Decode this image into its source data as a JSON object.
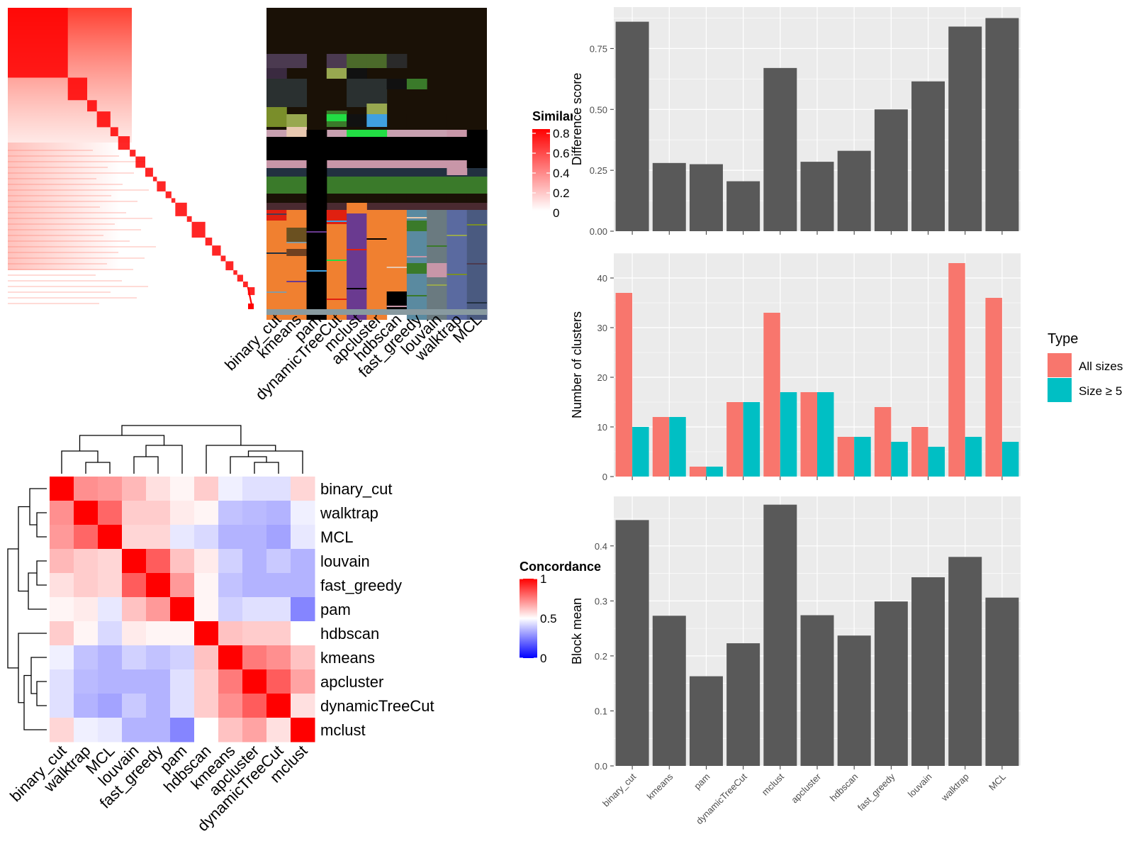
{
  "methods": [
    "binary_cut",
    "kmeans",
    "pam",
    "dynamicTreeCut",
    "mclust",
    "apcluster",
    "hdbscan",
    "fast_greedy",
    "louvain",
    "walktrap",
    "MCL"
  ],
  "heatmap_order": [
    "binary_cut",
    "walktrap",
    "MCL",
    "louvain",
    "fast_greedy",
    "pam",
    "hdbscan",
    "kmeans",
    "apcluster",
    "dynamicTreeCut",
    "mclust"
  ],
  "similarity_legend": {
    "title": "Similarity",
    "ticks": [
      "0.8",
      "0.6",
      "0.4",
      "0.2",
      "0"
    ]
  },
  "concordance_legend": {
    "title": "Concordance",
    "ticks": [
      "1",
      "0.5",
      "0"
    ],
    "colors": {
      "low": "#0000ff",
      "mid": "#ffffff",
      "high": "#ff0000"
    }
  },
  "type_legend": {
    "title": "Type",
    "items": [
      {
        "label": "All sizes",
        "color": "#f8766d"
      },
      {
        "label": "Size ≥ 5",
        "color": "#00bfc4"
      }
    ]
  },
  "colors": {
    "bar": "#595959",
    "panel_bg": "#ebebeb",
    "grid": "#ffffff",
    "similarity_high": "#ff0000"
  },
  "chart_data": [
    {
      "type": "bar",
      "ylabel": "Difference score",
      "categories": [
        "binary_cut",
        "kmeans",
        "pam",
        "dynamicTreeCut",
        "mclust",
        "apcluster",
        "hdbscan",
        "fast_greedy",
        "louvain",
        "walktrap",
        "MCL"
      ],
      "values": [
        0.86,
        0.28,
        0.275,
        0.205,
        0.67,
        0.285,
        0.33,
        0.5,
        0.615,
        0.84,
        0.875
      ],
      "yticks": [
        "0.00",
        "0.25",
        "0.50",
        "0.75"
      ],
      "ylim": [
        0,
        0.92
      ]
    },
    {
      "type": "bar",
      "ylabel": "Number of clusters",
      "categories": [
        "binary_cut",
        "kmeans",
        "pam",
        "dynamicTreeCut",
        "mclust",
        "apcluster",
        "hdbscan",
        "fast_greedy",
        "louvain",
        "walktrap",
        "MCL"
      ],
      "series": [
        {
          "name": "All sizes",
          "values": [
            37,
            12,
            2,
            15,
            33,
            17,
            8,
            14,
            10,
            43,
            36
          ]
        },
        {
          "name": "Size ≥ 5",
          "values": [
            10,
            12,
            2,
            15,
            17,
            17,
            8,
            7,
            6,
            8,
            7
          ]
        }
      ],
      "yticks": [
        "0",
        "10",
        "20",
        "30",
        "40"
      ],
      "ylim": [
        0,
        45
      ]
    },
    {
      "type": "bar",
      "ylabel": "Block mean",
      "categories": [
        "binary_cut",
        "kmeans",
        "pam",
        "dynamicTreeCut",
        "mclust",
        "apcluster",
        "hdbscan",
        "fast_greedy",
        "louvain",
        "walktrap",
        "MCL"
      ],
      "values": [
        0.447,
        0.273,
        0.163,
        0.223,
        0.475,
        0.274,
        0.237,
        0.299,
        0.343,
        0.38,
        0.306
      ],
      "yticks": [
        "0.0",
        "0.1",
        "0.2",
        "0.3",
        "0.4"
      ],
      "ylim": [
        0,
        0.49
      ]
    },
    {
      "type": "heatmap",
      "title": "Concordance",
      "rows": [
        "binary_cut",
        "walktrap",
        "MCL",
        "louvain",
        "fast_greedy",
        "pam",
        "hdbscan",
        "kmeans",
        "apcluster",
        "dynamicTreeCut",
        "mclust"
      ],
      "cols": [
        "binary_cut",
        "walktrap",
        "MCL",
        "louvain",
        "fast_greedy",
        "pam",
        "hdbscan",
        "kmeans",
        "apcluster",
        "dynamicTreeCut",
        "mclust"
      ],
      "values": [
        [
          1.0,
          0.72,
          0.7,
          0.64,
          0.56,
          0.52,
          0.6,
          0.46,
          0.42,
          0.42,
          0.58
        ],
        [
          0.72,
          1.0,
          0.8,
          0.6,
          0.6,
          0.54,
          0.52,
          0.34,
          0.32,
          0.3,
          0.46
        ],
        [
          0.7,
          0.8,
          1.0,
          0.58,
          0.58,
          0.44,
          0.4,
          0.3,
          0.3,
          0.26,
          0.44
        ],
        [
          0.64,
          0.6,
          0.58,
          1.0,
          0.82,
          0.62,
          0.54,
          0.38,
          0.3,
          0.36,
          0.3
        ],
        [
          0.56,
          0.6,
          0.58,
          0.82,
          1.0,
          0.7,
          0.52,
          0.34,
          0.3,
          0.3,
          0.3
        ],
        [
          0.52,
          0.54,
          0.44,
          0.62,
          0.7,
          1.0,
          0.52,
          0.38,
          0.42,
          0.42,
          0.18
        ],
        [
          0.6,
          0.52,
          0.4,
          0.54,
          0.52,
          0.52,
          1.0,
          0.62,
          0.6,
          0.6,
          0.5
        ],
        [
          0.46,
          0.34,
          0.3,
          0.38,
          0.34,
          0.38,
          0.62,
          1.0,
          0.76,
          0.72,
          0.62
        ],
        [
          0.42,
          0.32,
          0.3,
          0.3,
          0.3,
          0.42,
          0.6,
          0.76,
          1.0,
          0.82,
          0.68
        ],
        [
          0.42,
          0.3,
          0.26,
          0.36,
          0.3,
          0.42,
          0.6,
          0.72,
          0.82,
          1.0,
          0.56
        ],
        [
          0.58,
          0.46,
          0.44,
          0.3,
          0.3,
          0.18,
          0.5,
          0.62,
          0.68,
          0.56,
          1.0
        ]
      ]
    }
  ]
}
